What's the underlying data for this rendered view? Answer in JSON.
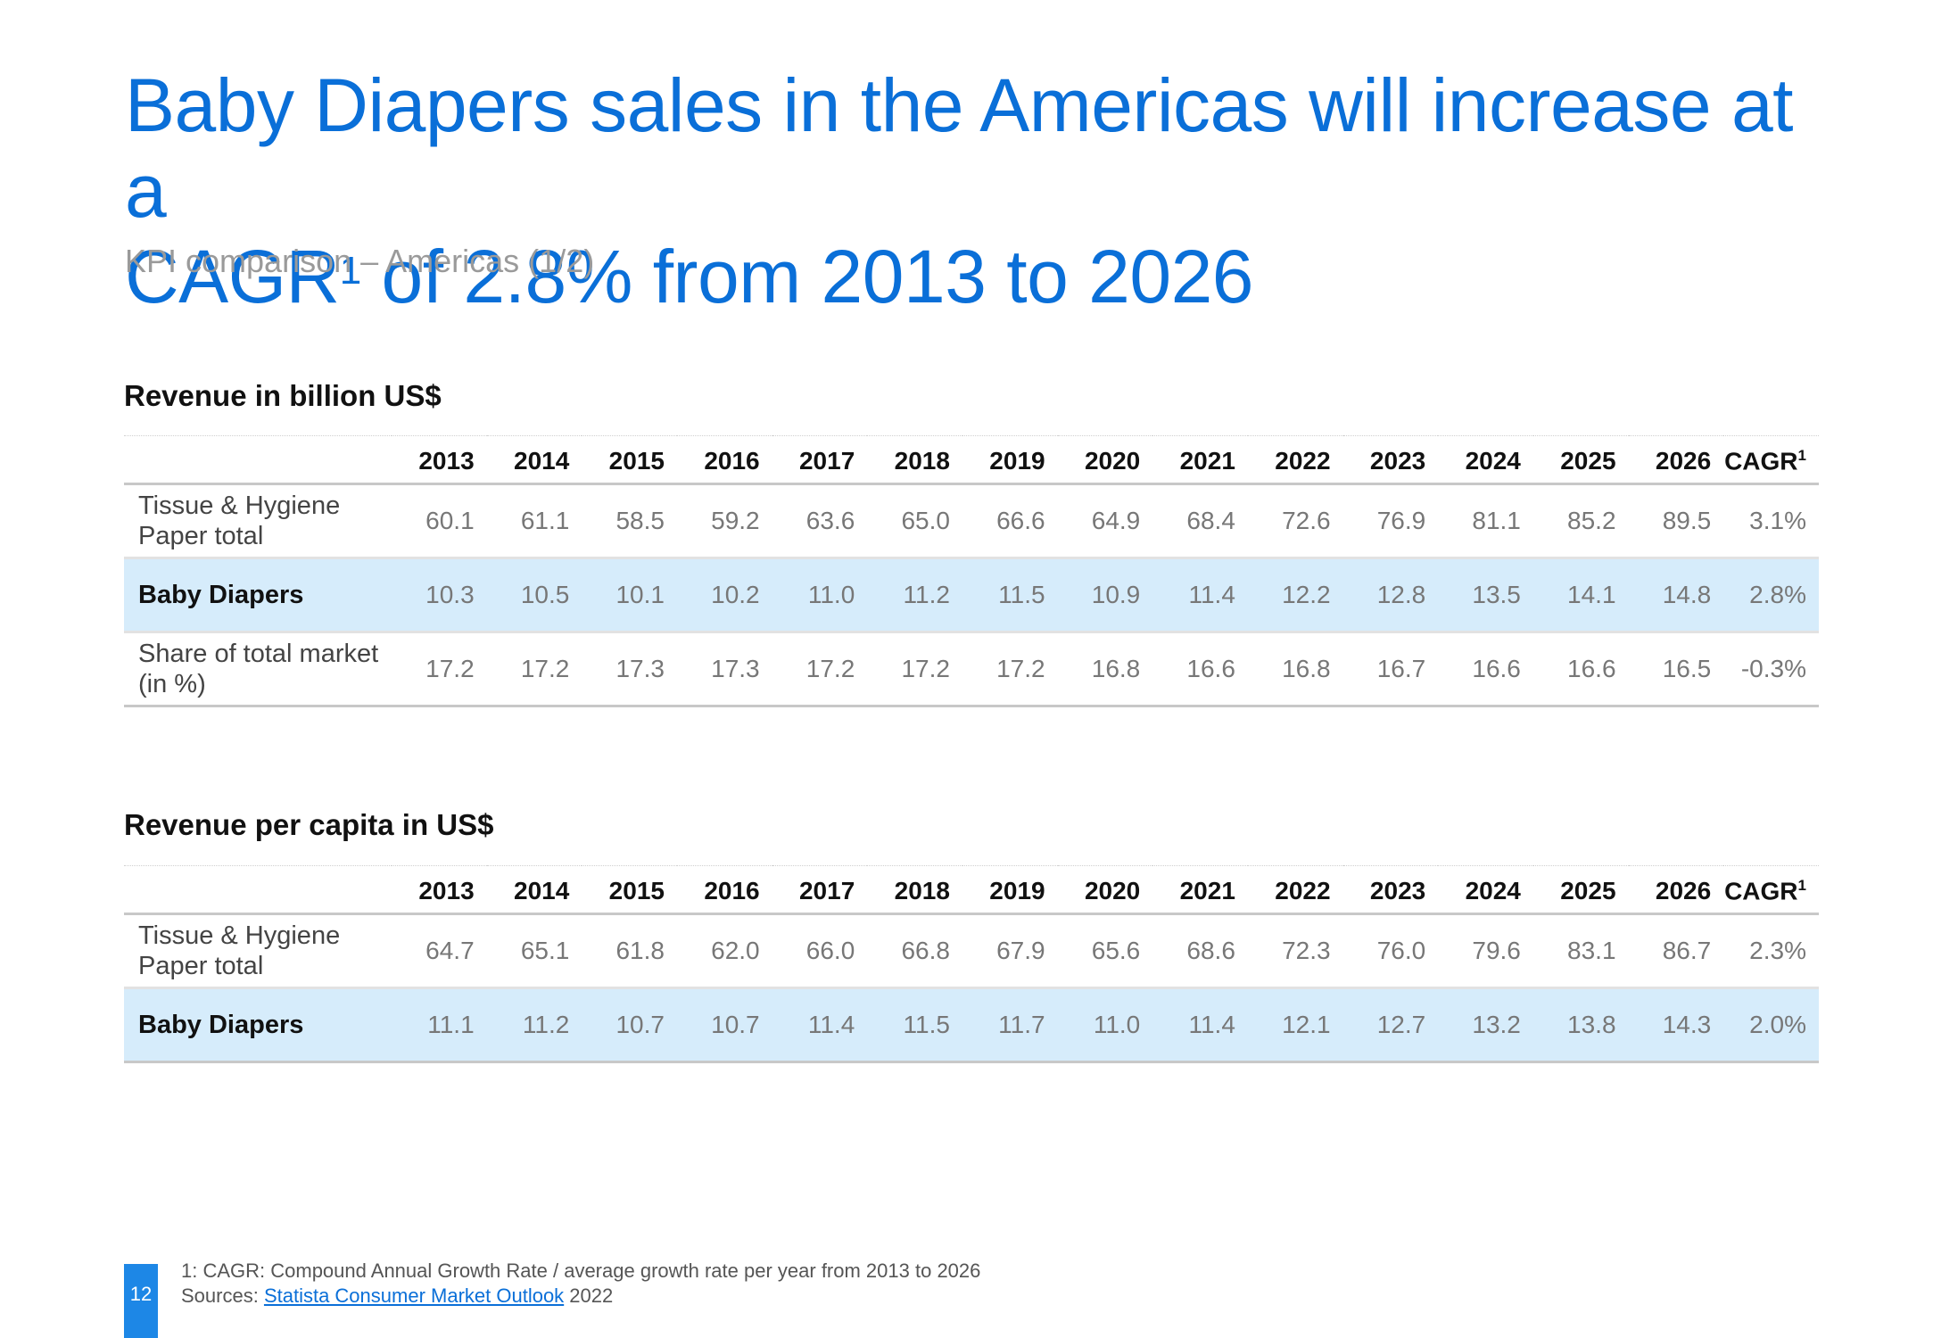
{
  "title": {
    "line1": "Baby Diapers sales in the Americas will increase at a",
    "line2_pre": "CAGR",
    "line2_sup": "1",
    "line2_post": " of 2.8% from 2013 to 2026"
  },
  "subtitle": "KPI comparison – Americas (1/2)",
  "years": [
    "2013",
    "2014",
    "2015",
    "2016",
    "2017",
    "2018",
    "2019",
    "2020",
    "2021",
    "2022",
    "2023",
    "2024",
    "2025",
    "2026"
  ],
  "cagr_label": "CAGR",
  "cagr_sup": "1",
  "table1": {
    "heading": "Revenue in billion US$",
    "rows": [
      {
        "label": "Tissue & Hygiene\nPaper total",
        "values": [
          "60.1",
          "61.1",
          "58.5",
          "59.2",
          "63.6",
          "65.0",
          "66.6",
          "64.9",
          "68.4",
          "72.6",
          "76.9",
          "81.1",
          "85.2",
          "89.5"
        ],
        "cagr": "3.1%"
      },
      {
        "label": "Baby Diapers",
        "values": [
          "10.3",
          "10.5",
          "10.1",
          "10.2",
          "11.0",
          "11.2",
          "11.5",
          "10.9",
          "11.4",
          "12.2",
          "12.8",
          "13.5",
          "14.1",
          "14.8"
        ],
        "cagr": "2.8%"
      },
      {
        "label": "Share of total market\n(in %)",
        "values": [
          "17.2",
          "17.2",
          "17.3",
          "17.3",
          "17.2",
          "17.2",
          "17.2",
          "16.8",
          "16.6",
          "16.8",
          "16.7",
          "16.6",
          "16.6",
          "16.5"
        ],
        "cagr": "-0.3%"
      }
    ]
  },
  "table2": {
    "heading": "Revenue per capita in US$",
    "rows": [
      {
        "label": "Tissue & Hygiene\nPaper total",
        "values": [
          "64.7",
          "65.1",
          "61.8",
          "62.0",
          "66.0",
          "66.8",
          "67.9",
          "65.6",
          "68.6",
          "72.3",
          "76.0",
          "79.6",
          "83.1",
          "86.7"
        ],
        "cagr": "2.3%"
      },
      {
        "label": "Baby Diapers",
        "values": [
          "11.1",
          "11.2",
          "10.7",
          "10.7",
          "11.4",
          "11.5",
          "11.7",
          "11.0",
          "11.4",
          "12.1",
          "12.7",
          "13.2",
          "13.8",
          "14.3"
        ],
        "cagr": "2.0%"
      }
    ]
  },
  "footer": {
    "page_number": "12",
    "footnote": "1: CAGR: Compound Annual Growth Rate / average growth rate per year from 2013 to 2026",
    "sources_label": "Sources: ",
    "sources_link": "Statista Consumer Market Outlook",
    "sources_year": " 2022"
  },
  "colors": {
    "title": "#0a6fd8",
    "highlight": "#d6ecfb",
    "accent": "#1d87e6"
  }
}
